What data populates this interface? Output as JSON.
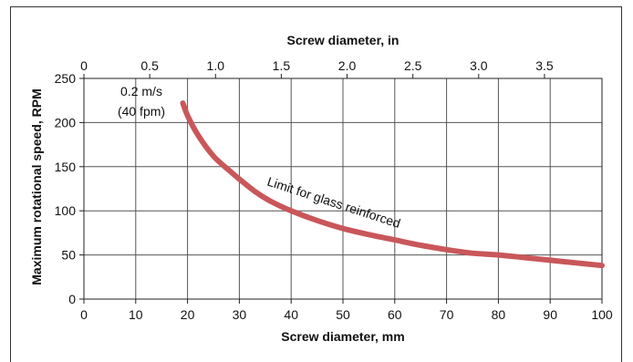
{
  "chart_data": {
    "type": "line",
    "title": "",
    "xlabel": "Screw diameter, mm",
    "x2label": "Screw diameter, in",
    "ylabel": "Maximum rotational speed, RPM",
    "xlim": [
      0,
      100
    ],
    "x2lim": [
      0,
      3.937
    ],
    "ylim": [
      0,
      250
    ],
    "x_ticks": [
      "0",
      "10",
      "20",
      "30",
      "40",
      "50",
      "60",
      "70",
      "80",
      "90",
      "100"
    ],
    "x2_ticks": [
      "0",
      "0.5",
      "1.0",
      "1.5",
      "2.0",
      "2.5",
      "3.0",
      "3.5"
    ],
    "y_ticks": [
      "0",
      "50",
      "100",
      "150",
      "200",
      "250"
    ],
    "grid": true,
    "series": [
      {
        "name": "Limit for glass reinforced",
        "color": "#c9575a",
        "x": [
          19.1,
          20,
          22,
          25,
          28,
          30,
          33,
          36,
          40,
          45,
          50,
          55,
          60,
          65,
          70,
          75,
          80,
          85,
          90,
          95,
          100
        ],
        "y": [
          222,
          208,
          186,
          162,
          146,
          136,
          122,
          111,
          100,
          89,
          80,
          73,
          67,
          61,
          56,
          52,
          50,
          47,
          44,
          41,
          38
        ]
      }
    ],
    "annotations": [
      {
        "line1": "0.2 m/s",
        "line2": "(40 fpm)"
      },
      {
        "text": "Limit for glass reinforced"
      }
    ]
  }
}
